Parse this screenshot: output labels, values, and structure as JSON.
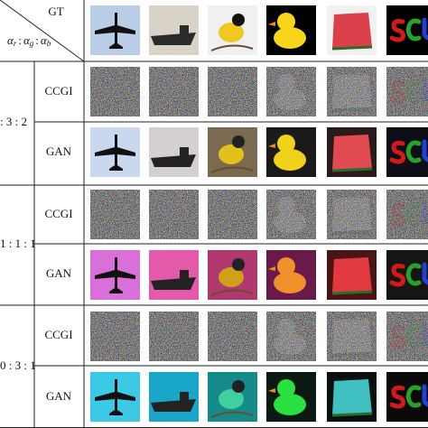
{
  "header": {
    "gt": "GT",
    "alpha": [
      "α",
      "α",
      "α"
    ],
    "subs": [
      "r",
      "g",
      "b"
    ],
    "sep": [
      ":",
      ":"
    ]
  },
  "rows": [
    {
      "ratio": ": 3 : 2",
      "methods": [
        "CCGI",
        "GAN"
      ]
    },
    {
      "ratio": "1 : 1 : 1",
      "methods": [
        "CCGI",
        "GAN"
      ]
    },
    {
      "ratio": "0 : 3 : 1",
      "methods": [
        "CCGI",
        "GAN"
      ]
    }
  ]
}
